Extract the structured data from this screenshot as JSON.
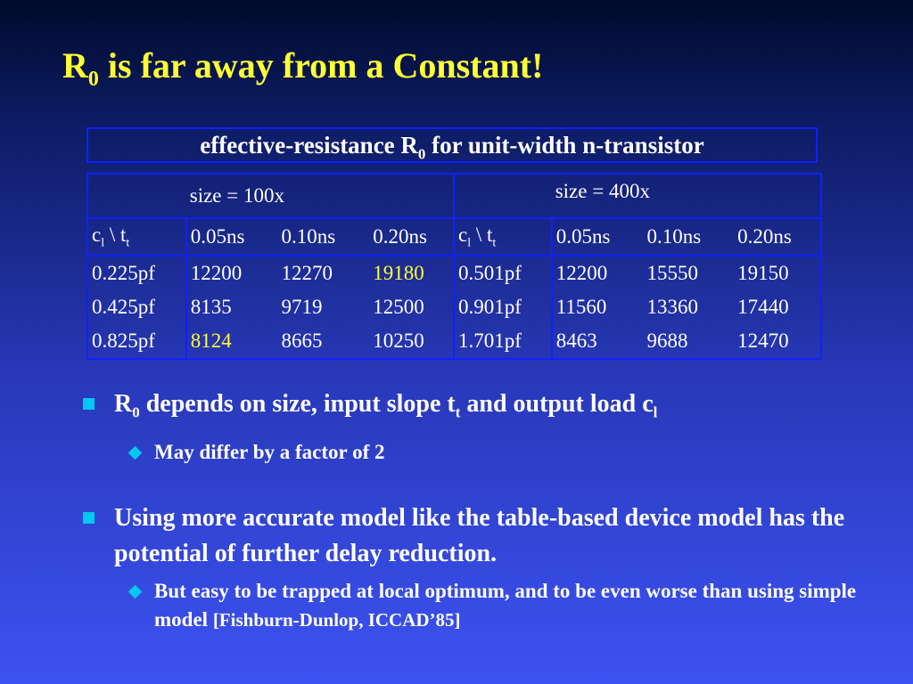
{
  "title": {
    "main": "R",
    "sub": "0",
    "rest": " is far away from a Constant!"
  },
  "caption": {
    "pre": "effective-resistance R",
    "sub": "0",
    "post": " for unit-width n-transistor"
  },
  "table": {
    "groups": [
      {
        "size_label": "size = 100x",
        "corner": {
          "a": "c",
          "a_sub": "l",
          "mid": " \\ t",
          "b_sub": "t"
        },
        "columns": [
          "0.05ns",
          "0.10ns",
          "0.20ns"
        ],
        "rows": [
          {
            "load": "0.225pf",
            "values": [
              "12200",
              "12270",
              "19180"
            ]
          },
          {
            "load": "0.425pf",
            "values": [
              "8135",
              "9719",
              "12500"
            ]
          },
          {
            "load": "0.825pf",
            "values": [
              "8124",
              "8665",
              "10250"
            ]
          }
        ]
      },
      {
        "size_label": "size = 400x",
        "corner": {
          "a": "c",
          "a_sub": "l",
          "mid": " \\ t",
          "b_sub": "t"
        },
        "columns": [
          "0.05ns",
          "0.10ns",
          "0.20ns"
        ],
        "rows": [
          {
            "load": "0.501pf",
            "values": [
              "12200",
              "15550",
              "19150"
            ]
          },
          {
            "load": "0.901pf",
            "values": [
              "11560",
              "13360",
              "17440"
            ]
          },
          {
            "load": "1.701pf",
            "values": [
              "8463",
              "9688",
              "12470"
            ]
          }
        ]
      }
    ],
    "highlight_color": "#ffff33"
  },
  "bullets": [
    {
      "parts": [
        "R",
        "0",
        " depends on size, input slope t",
        "t",
        " and output load c",
        "l"
      ],
      "subs": [
        {
          "text": "May differ by a factor of 2"
        }
      ]
    },
    {
      "text": "Using more accurate model like the table-based device model has the potential of further delay reduction.",
      "subs": [
        {
          "text": "But easy to be trapped at local optimum, and to be even worse than using simple model ",
          "ref": "[Fishburn-Dunlop, ICCAD’85]"
        }
      ]
    }
  ],
  "colors": {
    "title": "#ffff33",
    "border": "#1020ff",
    "bullet": "#00c8f0"
  }
}
